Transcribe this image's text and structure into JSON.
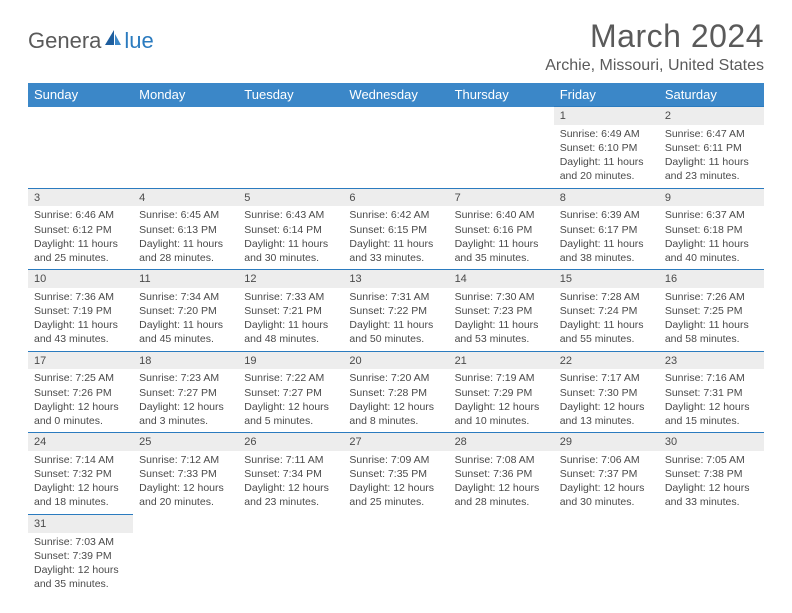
{
  "logo": {
    "textA": "Genera",
    "textB": "lue"
  },
  "title": "March 2024",
  "location": "Archie, Missouri, United States",
  "colors": {
    "header_bg": "#3b87c8",
    "header_text": "#ffffff",
    "daynum_bg": "#ededed",
    "border": "#2b7bbf",
    "text": "#4a4a4a",
    "page_bg": "#ffffff"
  },
  "weekdays": [
    "Sunday",
    "Monday",
    "Tuesday",
    "Wednesday",
    "Thursday",
    "Friday",
    "Saturday"
  ],
  "weeks": [
    [
      null,
      null,
      null,
      null,
      null,
      {
        "n": "1",
        "sr": "Sunrise: 6:49 AM",
        "ss": "Sunset: 6:10 PM",
        "d1": "Daylight: 11 hours",
        "d2": "and 20 minutes."
      },
      {
        "n": "2",
        "sr": "Sunrise: 6:47 AM",
        "ss": "Sunset: 6:11 PM",
        "d1": "Daylight: 11 hours",
        "d2": "and 23 minutes."
      }
    ],
    [
      {
        "n": "3",
        "sr": "Sunrise: 6:46 AM",
        "ss": "Sunset: 6:12 PM",
        "d1": "Daylight: 11 hours",
        "d2": "and 25 minutes."
      },
      {
        "n": "4",
        "sr": "Sunrise: 6:45 AM",
        "ss": "Sunset: 6:13 PM",
        "d1": "Daylight: 11 hours",
        "d2": "and 28 minutes."
      },
      {
        "n": "5",
        "sr": "Sunrise: 6:43 AM",
        "ss": "Sunset: 6:14 PM",
        "d1": "Daylight: 11 hours",
        "d2": "and 30 minutes."
      },
      {
        "n": "6",
        "sr": "Sunrise: 6:42 AM",
        "ss": "Sunset: 6:15 PM",
        "d1": "Daylight: 11 hours",
        "d2": "and 33 minutes."
      },
      {
        "n": "7",
        "sr": "Sunrise: 6:40 AM",
        "ss": "Sunset: 6:16 PM",
        "d1": "Daylight: 11 hours",
        "d2": "and 35 minutes."
      },
      {
        "n": "8",
        "sr": "Sunrise: 6:39 AM",
        "ss": "Sunset: 6:17 PM",
        "d1": "Daylight: 11 hours",
        "d2": "and 38 minutes."
      },
      {
        "n": "9",
        "sr": "Sunrise: 6:37 AM",
        "ss": "Sunset: 6:18 PM",
        "d1": "Daylight: 11 hours",
        "d2": "and 40 minutes."
      }
    ],
    [
      {
        "n": "10",
        "sr": "Sunrise: 7:36 AM",
        "ss": "Sunset: 7:19 PM",
        "d1": "Daylight: 11 hours",
        "d2": "and 43 minutes."
      },
      {
        "n": "11",
        "sr": "Sunrise: 7:34 AM",
        "ss": "Sunset: 7:20 PM",
        "d1": "Daylight: 11 hours",
        "d2": "and 45 minutes."
      },
      {
        "n": "12",
        "sr": "Sunrise: 7:33 AM",
        "ss": "Sunset: 7:21 PM",
        "d1": "Daylight: 11 hours",
        "d2": "and 48 minutes."
      },
      {
        "n": "13",
        "sr": "Sunrise: 7:31 AM",
        "ss": "Sunset: 7:22 PM",
        "d1": "Daylight: 11 hours",
        "d2": "and 50 minutes."
      },
      {
        "n": "14",
        "sr": "Sunrise: 7:30 AM",
        "ss": "Sunset: 7:23 PM",
        "d1": "Daylight: 11 hours",
        "d2": "and 53 minutes."
      },
      {
        "n": "15",
        "sr": "Sunrise: 7:28 AM",
        "ss": "Sunset: 7:24 PM",
        "d1": "Daylight: 11 hours",
        "d2": "and 55 minutes."
      },
      {
        "n": "16",
        "sr": "Sunrise: 7:26 AM",
        "ss": "Sunset: 7:25 PM",
        "d1": "Daylight: 11 hours",
        "d2": "and 58 minutes."
      }
    ],
    [
      {
        "n": "17",
        "sr": "Sunrise: 7:25 AM",
        "ss": "Sunset: 7:26 PM",
        "d1": "Daylight: 12 hours",
        "d2": "and 0 minutes."
      },
      {
        "n": "18",
        "sr": "Sunrise: 7:23 AM",
        "ss": "Sunset: 7:27 PM",
        "d1": "Daylight: 12 hours",
        "d2": "and 3 minutes."
      },
      {
        "n": "19",
        "sr": "Sunrise: 7:22 AM",
        "ss": "Sunset: 7:27 PM",
        "d1": "Daylight: 12 hours",
        "d2": "and 5 minutes."
      },
      {
        "n": "20",
        "sr": "Sunrise: 7:20 AM",
        "ss": "Sunset: 7:28 PM",
        "d1": "Daylight: 12 hours",
        "d2": "and 8 minutes."
      },
      {
        "n": "21",
        "sr": "Sunrise: 7:19 AM",
        "ss": "Sunset: 7:29 PM",
        "d1": "Daylight: 12 hours",
        "d2": "and 10 minutes."
      },
      {
        "n": "22",
        "sr": "Sunrise: 7:17 AM",
        "ss": "Sunset: 7:30 PM",
        "d1": "Daylight: 12 hours",
        "d2": "and 13 minutes."
      },
      {
        "n": "23",
        "sr": "Sunrise: 7:16 AM",
        "ss": "Sunset: 7:31 PM",
        "d1": "Daylight: 12 hours",
        "d2": "and 15 minutes."
      }
    ],
    [
      {
        "n": "24",
        "sr": "Sunrise: 7:14 AM",
        "ss": "Sunset: 7:32 PM",
        "d1": "Daylight: 12 hours",
        "d2": "and 18 minutes."
      },
      {
        "n": "25",
        "sr": "Sunrise: 7:12 AM",
        "ss": "Sunset: 7:33 PM",
        "d1": "Daylight: 12 hours",
        "d2": "and 20 minutes."
      },
      {
        "n": "26",
        "sr": "Sunrise: 7:11 AM",
        "ss": "Sunset: 7:34 PM",
        "d1": "Daylight: 12 hours",
        "d2": "and 23 minutes."
      },
      {
        "n": "27",
        "sr": "Sunrise: 7:09 AM",
        "ss": "Sunset: 7:35 PM",
        "d1": "Daylight: 12 hours",
        "d2": "and 25 minutes."
      },
      {
        "n": "28",
        "sr": "Sunrise: 7:08 AM",
        "ss": "Sunset: 7:36 PM",
        "d1": "Daylight: 12 hours",
        "d2": "and 28 minutes."
      },
      {
        "n": "29",
        "sr": "Sunrise: 7:06 AM",
        "ss": "Sunset: 7:37 PM",
        "d1": "Daylight: 12 hours",
        "d2": "and 30 minutes."
      },
      {
        "n": "30",
        "sr": "Sunrise: 7:05 AM",
        "ss": "Sunset: 7:38 PM",
        "d1": "Daylight: 12 hours",
        "d2": "and 33 minutes."
      }
    ],
    [
      {
        "n": "31",
        "sr": "Sunrise: 7:03 AM",
        "ss": "Sunset: 7:39 PM",
        "d1": "Daylight: 12 hours",
        "d2": "and 35 minutes."
      },
      null,
      null,
      null,
      null,
      null,
      null
    ]
  ]
}
